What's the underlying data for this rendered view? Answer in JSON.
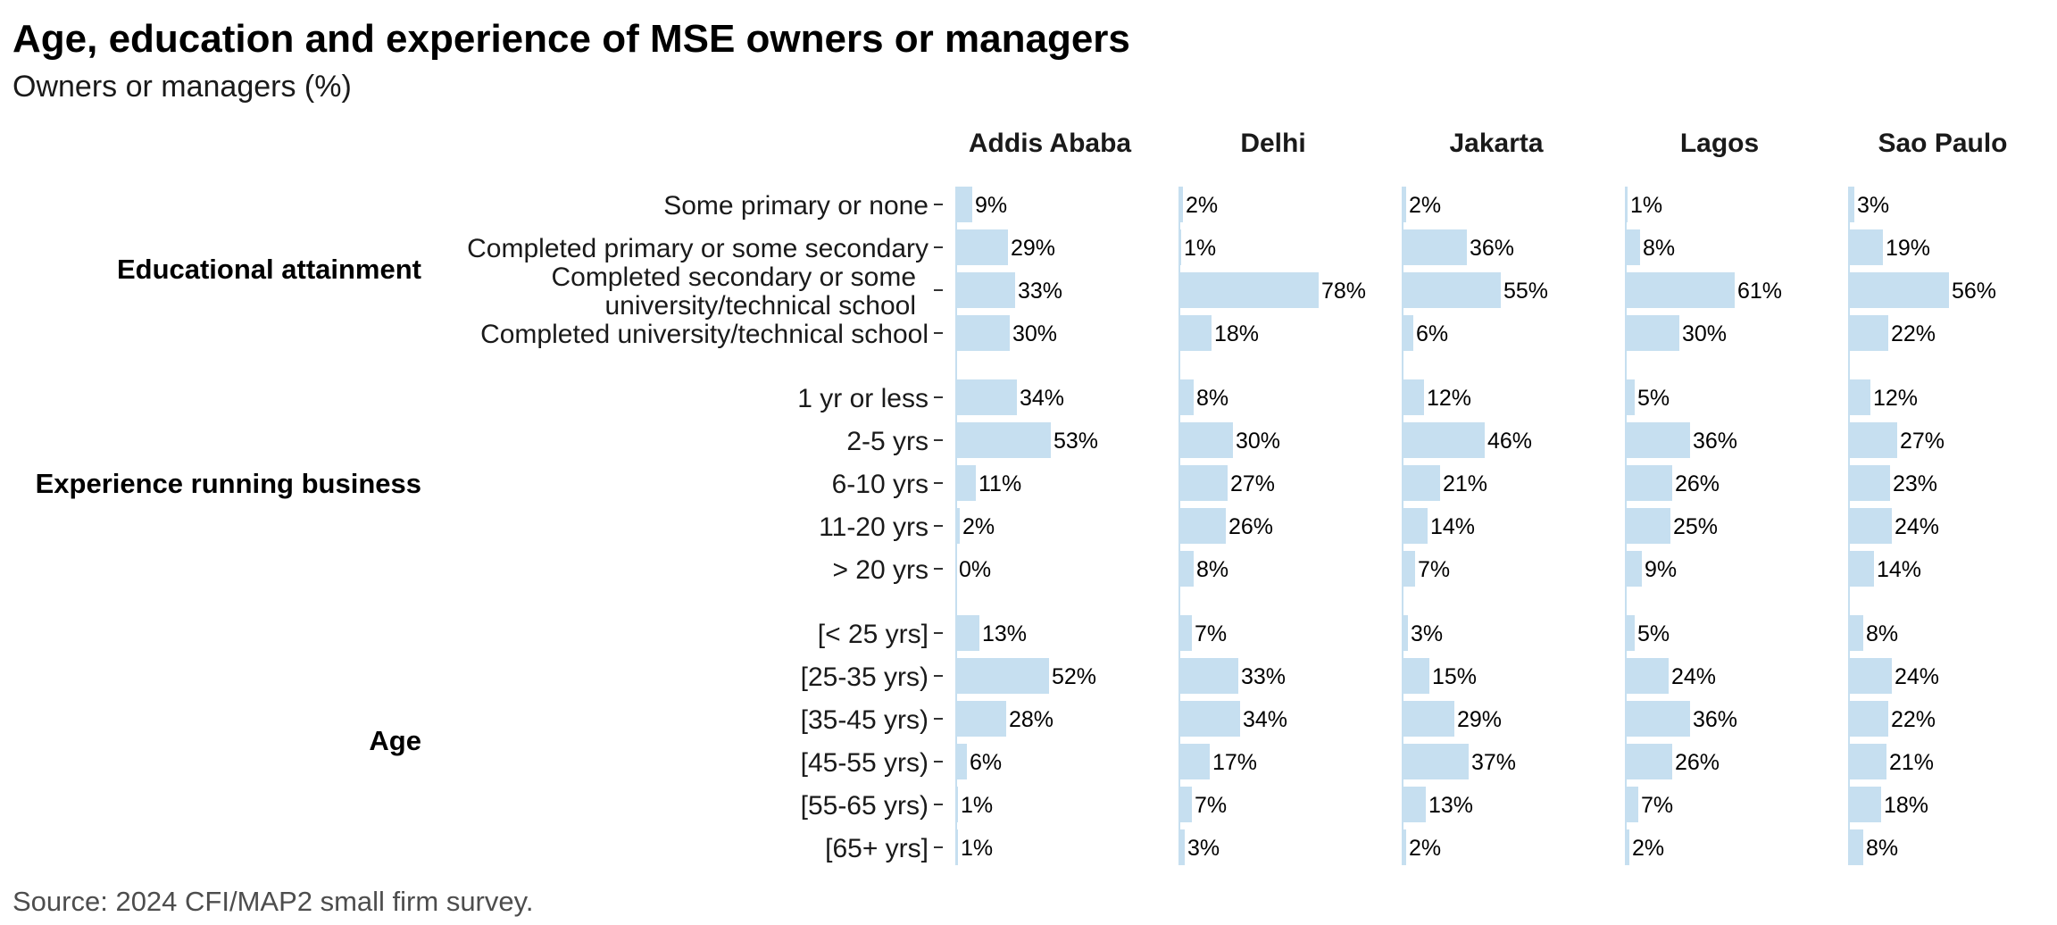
{
  "chart_data": {
    "type": "bar",
    "orientation": "horizontal",
    "title": "Age, education and experience of MSE owners or managers",
    "subtitle": "Owners or managers (%)",
    "source": "Source: 2024 CFI/MAP2 small firm survey.",
    "panels": [
      "Addis Ababa",
      "Delhi",
      "Jakarta",
      "Lagos",
      "Sao Paulo"
    ],
    "xlim": [
      0,
      100
    ],
    "grid": false,
    "legend": "none",
    "bar_color": "#c6dff0",
    "groups": [
      {
        "name": "Educational attainment",
        "rows": [
          {
            "label": [
              "Some primary or none"
            ],
            "values": [
              9,
              2,
              2,
              1,
              3
            ]
          },
          {
            "label": [
              "Completed primary or some secondary"
            ],
            "values": [
              29,
              1,
              36,
              8,
              19
            ]
          },
          {
            "label": [
              "Completed secondary or some",
              "university/technical school"
            ],
            "values": [
              33,
              78,
              55,
              61,
              56
            ]
          },
          {
            "label": [
              "Completed university/technical school"
            ],
            "values": [
              30,
              18,
              6,
              30,
              22
            ]
          }
        ]
      },
      {
        "name": "Experience running business",
        "rows": [
          {
            "label": [
              "1 yr or less"
            ],
            "values": [
              34,
              8,
              12,
              5,
              12
            ]
          },
          {
            "label": [
              "2-5 yrs"
            ],
            "values": [
              53,
              30,
              46,
              36,
              27
            ]
          },
          {
            "label": [
              "6-10 yrs"
            ],
            "values": [
              11,
              27,
              21,
              26,
              23
            ]
          },
          {
            "label": [
              "11-20 yrs"
            ],
            "values": [
              2,
              26,
              14,
              25,
              24
            ]
          },
          {
            "label": [
              "> 20 yrs"
            ],
            "values": [
              0,
              8,
              7,
              9,
              14
            ]
          }
        ]
      },
      {
        "name": "Age",
        "rows": [
          {
            "label": [
              "[< 25 yrs]"
            ],
            "values": [
              13,
              7,
              3,
              5,
              8
            ]
          },
          {
            "label": [
              "[25-35 yrs)"
            ],
            "values": [
              52,
              33,
              15,
              24,
              24
            ]
          },
          {
            "label": [
              "[35-45 yrs)"
            ],
            "values": [
              28,
              34,
              29,
              36,
              22
            ]
          },
          {
            "label": [
              "[45-55 yrs)"
            ],
            "values": [
              6,
              17,
              37,
              26,
              21
            ]
          },
          {
            "label": [
              "[55-65 yrs)"
            ],
            "values": [
              1,
              7,
              13,
              7,
              18
            ]
          },
          {
            "label": [
              "[65+ yrs]"
            ],
            "values": [
              1,
              3,
              2,
              2,
              8
            ]
          }
        ]
      }
    ]
  }
}
